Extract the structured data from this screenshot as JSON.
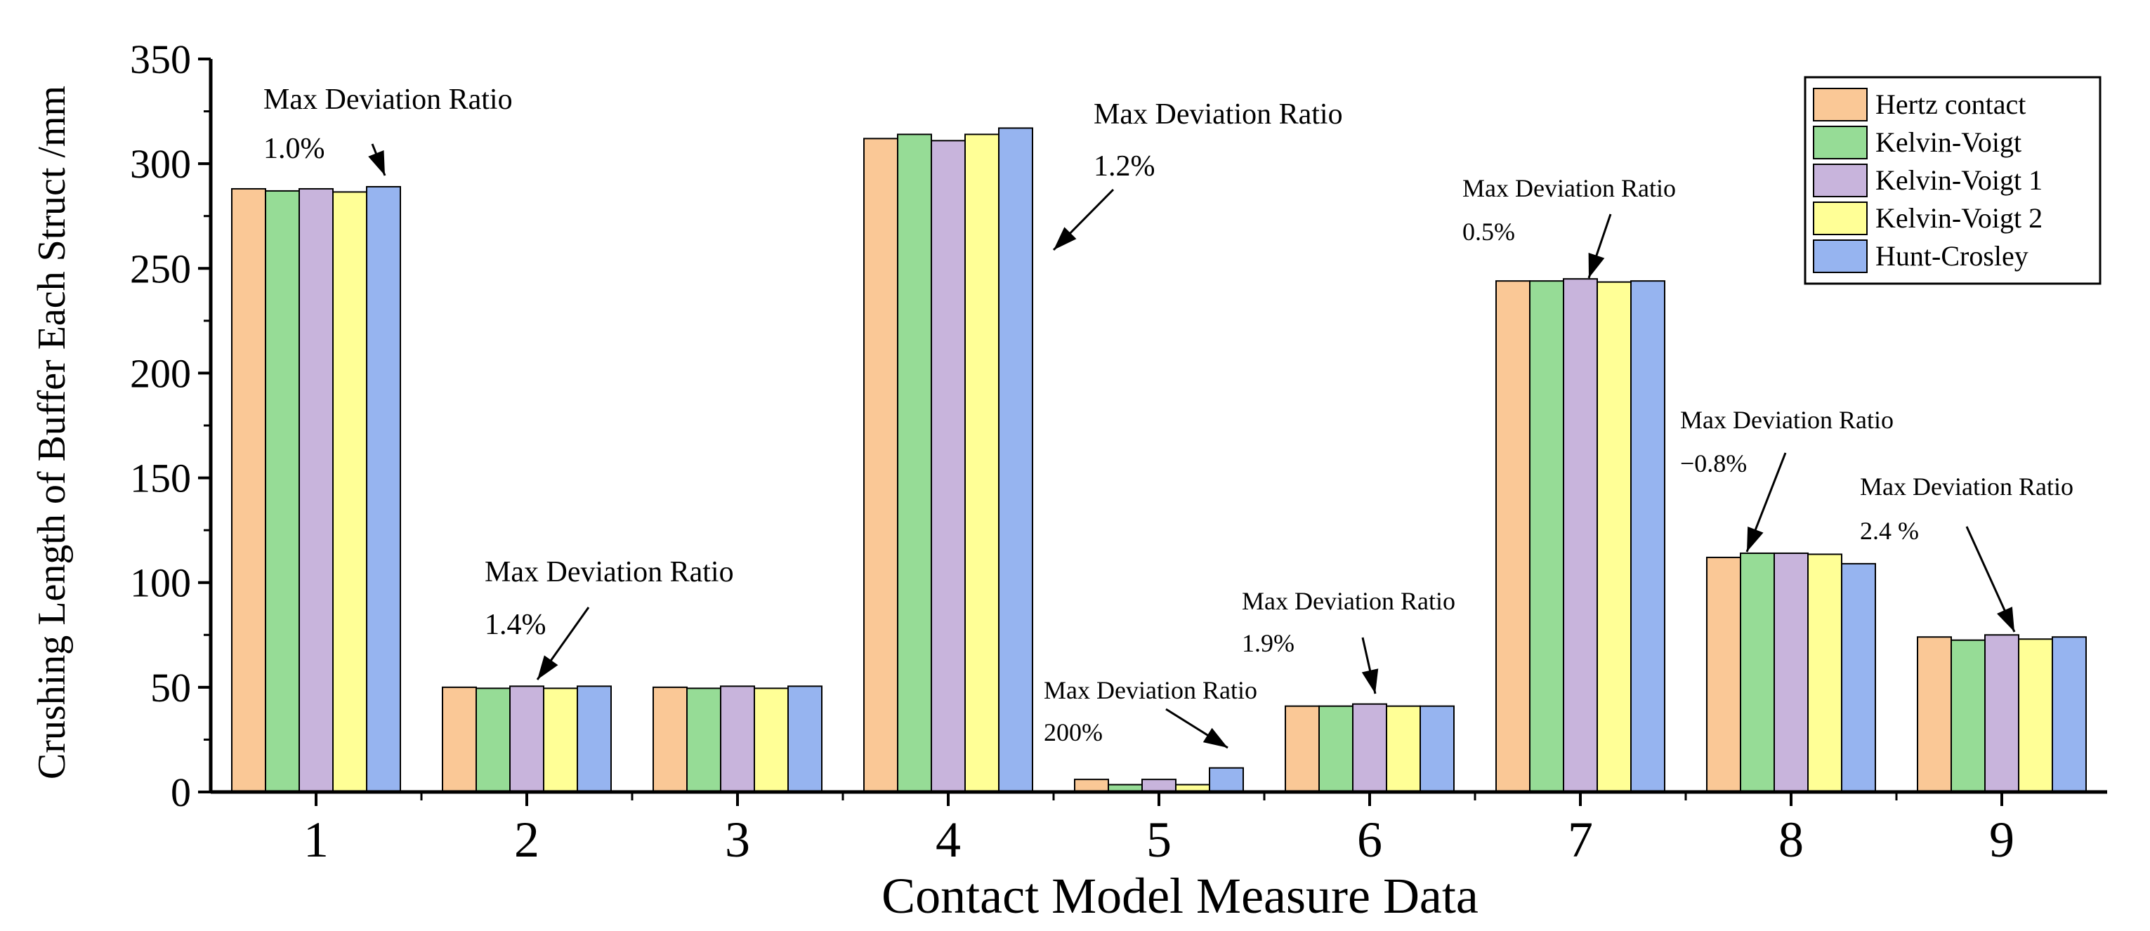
{
  "chart_data": {
    "type": "bar",
    "title": "",
    "xlabel": "Contact Model Measure Data",
    "ylabel": "Crushing Length of Buffer Each Struct /mm",
    "ylim": [
      0,
      350
    ],
    "yticks": [
      "0",
      "50",
      "100",
      "150",
      "200",
      "250",
      "300",
      "350"
    ],
    "categories": [
      "1",
      "2",
      "3",
      "4",
      "5",
      "6",
      "7",
      "8",
      "9"
    ],
    "series": [
      {
        "name": "Hertz contact",
        "color": "#FAC896",
        "values": [
          288,
          50,
          50,
          312,
          6,
          41,
          244,
          112,
          74
        ]
      },
      {
        "name": "Kelvin-Voigt",
        "color": "#96DC96",
        "values": [
          287,
          49.5,
          49.5,
          314,
          3.5,
          41,
          244,
          114,
          72.5
        ]
      },
      {
        "name": "Kelvin-Voigt 1",
        "color": "#C8B4DC",
        "values": [
          288,
          50.5,
          50.5,
          311,
          6,
          42,
          245,
          114,
          75
        ]
      },
      {
        "name": "Kelvin-Voigt 2",
        "color": "#FFFF96",
        "values": [
          286.5,
          49.5,
          49.5,
          314,
          3.5,
          41,
          243.5,
          113.5,
          73
        ]
      },
      {
        "name": "Hunt-Crosley",
        "color": "#96B4F0",
        "values": [
          289,
          50.5,
          50.5,
          317,
          11.5,
          41,
          244,
          109,
          74
        ]
      }
    ],
    "legend_position": "top-right",
    "annotations": [
      {
        "title": "Max Deviation Ratio",
        "value": "1.0%"
      },
      {
        "title": "Max Deviation Ratio",
        "value": "1.4%"
      },
      {
        "title": "Max Deviation Ratio",
        "value": "1.2%"
      },
      {
        "title": "Max Deviation Ratio",
        "value": "200%"
      },
      {
        "title": "Max Deviation Ratio",
        "value": "1.9%"
      },
      {
        "title": "Max Deviation Ratio",
        "value": "0.5%"
      },
      {
        "title": "Max Deviation Ratio",
        "value": "−0.8%"
      },
      {
        "title": "Max Deviation Ratio",
        "value": "2.4 %"
      }
    ]
  }
}
